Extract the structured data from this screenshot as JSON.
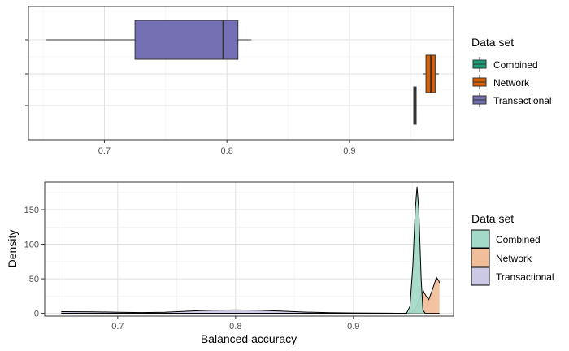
{
  "chart_data": [
    {
      "type": "boxplot",
      "title": "",
      "xlabel": "",
      "ylabel": "",
      "xlim": [
        0.638,
        0.985
      ],
      "x_ticks": [
        "0.7",
        "0.8",
        "0.9"
      ],
      "y_ticks": [
        "",
        "",
        ""
      ],
      "grid": true,
      "legend": {
        "title": "Data set",
        "position": "right",
        "keys": [
          "Combined",
          "Network",
          "Transactional"
        ]
      },
      "series": [
        {
          "name": "Transactional",
          "color": "#7570B3",
          "min": 0.652,
          "q1": 0.725,
          "median": 0.797,
          "q3": 0.809,
          "max": 0.82
        },
        {
          "name": "Network",
          "color": "#D95F02",
          "min": 0.96,
          "q1": 0.9625,
          "median": 0.9665,
          "q3": 0.97,
          "max": 0.973
        },
        {
          "name": "Combined",
          "color": "#1B9E77",
          "min": 0.9525,
          "q1": 0.9525,
          "median": 0.9535,
          "q3": 0.9545,
          "max": 0.9545
        }
      ]
    },
    {
      "type": "area",
      "title": "",
      "xlabel": "Balanced accuracy",
      "ylabel": "Density",
      "xlim": [
        0.638,
        0.985
      ],
      "ylim": [
        -4,
        190
      ],
      "x_ticks": [
        "0.7",
        "0.8",
        "0.9"
      ],
      "y_ticks": [
        "0",
        "50",
        "100",
        "150"
      ],
      "grid": true,
      "legend": {
        "title": "Data set",
        "position": "right",
        "keys": [
          "Combined",
          "Network",
          "Transactional"
        ]
      },
      "series": [
        {
          "name": "Transactional",
          "color": "#CBC9E3",
          "points": [
            [
              0.652,
              2.5
            ],
            [
              0.68,
              2.2
            ],
            [
              0.7,
              1.6
            ],
            [
              0.72,
              1.2
            ],
            [
              0.74,
              1.6
            ],
            [
              0.76,
              3.2
            ],
            [
              0.78,
              4.6
            ],
            [
              0.8,
              5.0
            ],
            [
              0.82,
              4.6
            ],
            [
              0.84,
              3.2
            ],
            [
              0.86,
              1.8
            ],
            [
              0.88,
              1.0
            ],
            [
              0.9,
              0.5
            ],
            [
              0.93,
              0.2
            ],
            [
              0.945,
              0
            ],
            [
              0.973,
              0
            ]
          ]
        },
        {
          "name": "Network",
          "color": "#F1BE9A",
          "points": [
            [
              0.652,
              0
            ],
            [
              0.94,
              0
            ],
            [
              0.949,
              0.5
            ],
            [
              0.953,
              8
            ],
            [
              0.957,
              25
            ],
            [
              0.9595,
              32
            ],
            [
              0.962,
              24
            ],
            [
              0.964,
              20
            ],
            [
              0.967,
              34
            ],
            [
              0.9705,
              52
            ],
            [
              0.9725,
              47
            ],
            [
              0.973,
              44
            ]
          ]
        },
        {
          "name": "Combined",
          "color": "#A3D9C8",
          "points": [
            [
              0.652,
              0
            ],
            [
              0.945,
              0
            ],
            [
              0.948,
              10
            ],
            [
              0.9505,
              70
            ],
            [
              0.9525,
              150
            ],
            [
              0.954,
              183
            ],
            [
              0.9555,
              150
            ],
            [
              0.9575,
              50
            ],
            [
              0.959,
              5
            ],
            [
              0.961,
              0
            ],
            [
              0.973,
              0
            ]
          ]
        }
      ]
    }
  ]
}
